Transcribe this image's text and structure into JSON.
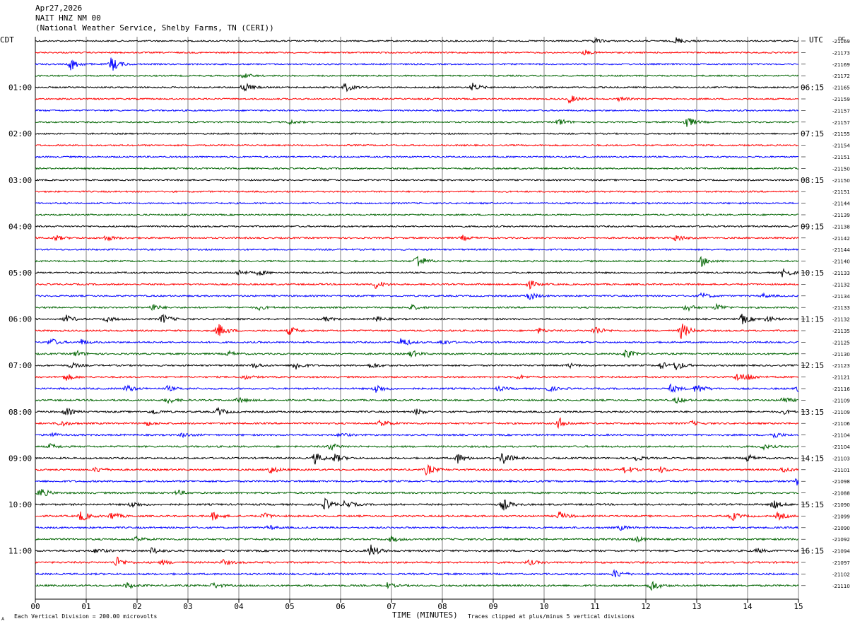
{
  "header": {
    "date": "Apr27,2026",
    "station": "NAIT HNZ NM 00",
    "location": "(National Weather Service, Shelby Farms, TN (CERI))",
    "left_tz": "CDT",
    "right_tz": "UTC",
    "dc_label": "DC"
  },
  "footer": {
    "scale_note": "Each Vertical Division =  200.00 microvolts",
    "clip_note": "Traces clipped at plus/minus 5 vertical divisions",
    "corner_mark": "A"
  },
  "colors": {
    "trace_cycle": [
      "#000000",
      "#ff0000",
      "#0000ff",
      "#006400"
    ],
    "grid": "#808080"
  },
  "chart_data": {
    "type": "line",
    "title": "NAIT HNZ NM 00",
    "xlabel": "TIME (MINUTES)",
    "x_ticks": [
      "00",
      "01",
      "02",
      "03",
      "04",
      "05",
      "06",
      "07",
      "08",
      "09",
      "10",
      "11",
      "12",
      "13",
      "14",
      "15"
    ],
    "xlim": [
      0,
      15
    ],
    "left_labels": [
      {
        "row": 4,
        "label": "01:00"
      },
      {
        "row": 8,
        "label": "02:00"
      },
      {
        "row": 12,
        "label": "03:00"
      },
      {
        "row": 16,
        "label": "04:00"
      },
      {
        "row": 20,
        "label": "05:00"
      },
      {
        "row": 24,
        "label": "06:00"
      },
      {
        "row": 28,
        "label": "07:00"
      },
      {
        "row": 32,
        "label": "08:00"
      },
      {
        "row": 36,
        "label": "09:00"
      },
      {
        "row": 40,
        "label": "10:00"
      },
      {
        "row": 44,
        "label": "11:00"
      }
    ],
    "right_labels": [
      {
        "row": 4,
        "label": "06:15"
      },
      {
        "row": 8,
        "label": "07:15"
      },
      {
        "row": 12,
        "label": "08:15"
      },
      {
        "row": 16,
        "label": "09:15"
      },
      {
        "row": 20,
        "label": "10:15"
      },
      {
        "row": 24,
        "label": "11:15"
      },
      {
        "row": 28,
        "label": "12:15"
      },
      {
        "row": 32,
        "label": "13:15"
      },
      {
        "row": 36,
        "label": "14:15"
      },
      {
        "row": 40,
        "label": "15:15"
      },
      {
        "row": 44,
        "label": "16:15"
      }
    ],
    "dc_offsets": [
      "-21169",
      "-21173",
      "-21169",
      "-21172",
      "-21165",
      "-21159",
      "-21157",
      "-21157",
      "-21155",
      "-21154",
      "-21151",
      "-21150",
      "-21150",
      "-21151",
      "-21144",
      "-21139",
      "-21138",
      "-21142",
      "-21144",
      "-21140",
      "-21133",
      "-21132",
      "-21134",
      "-21133",
      "-21132",
      "-21135",
      "-21125",
      "-21130",
      "-21123",
      "-21121",
      "-21116",
      "-21109",
      "-21109",
      "-21106",
      "-21104",
      "-21104",
      "-21103",
      "-21101",
      "-21098",
      "-21088",
      "-21090",
      "-21099",
      "-21090",
      "-21092",
      "-21094",
      "-21097",
      "-21102",
      "-21110"
    ],
    "events": [
      [
        [
          11.0,
          0.8
        ],
        [
          12.6,
          1.0
        ]
      ],
      [
        [
          10.8,
          0.7
        ]
      ],
      [
        [
          0.7,
          1.8
        ],
        [
          1.5,
          2.2
        ]
      ],
      [
        [
          4.1,
          0.7
        ]
      ],
      [
        [
          4.1,
          1.4
        ],
        [
          6.1,
          1.2
        ],
        [
          8.6,
          1.2
        ]
      ],
      [
        [
          10.5,
          1.2
        ],
        [
          11.5,
          0.6
        ]
      ],
      [],
      [
        [
          5.0,
          0.6
        ],
        [
          10.3,
          1.0
        ],
        [
          12.8,
          1.8
        ]
      ],
      [],
      [],
      [],
      [],
      [],
      [],
      [],
      [],
      [],
      [
        [
          0.4,
          0.8
        ],
        [
          1.4,
          0.8
        ],
        [
          8.4,
          0.7
        ],
        [
          12.6,
          1.0
        ]
      ],
      [],
      [
        [
          7.5,
          2.2
        ],
        [
          13.1,
          1.4
        ]
      ],
      [
        [
          4.0,
          0.8
        ],
        [
          4.4,
          0.7
        ],
        [
          14.7,
          1.4
        ]
      ],
      [
        [
          6.7,
          1.3
        ],
        [
          9.7,
          1.3
        ]
      ],
      [
        [
          9.7,
          1.3
        ],
        [
          13.1,
          0.9
        ],
        [
          14.3,
          0.6
        ]
      ],
      [
        [
          2.3,
          1.0
        ],
        [
          4.4,
          0.6
        ],
        [
          7.4,
          0.7
        ],
        [
          12.8,
          1.0
        ],
        [
          13.4,
          1.0
        ]
      ],
      [
        [
          0.6,
          1.1
        ],
        [
          1.4,
          0.8
        ],
        [
          2.5,
          1.4
        ],
        [
          5.7,
          0.6
        ],
        [
          6.7,
          0.7
        ],
        [
          13.9,
          1.5
        ],
        [
          14.4,
          0.8
        ]
      ],
      [
        [
          3.6,
          2.0
        ],
        [
          5.0,
          1.2
        ],
        [
          9.9,
          0.7
        ],
        [
          11.0,
          1.4
        ],
        [
          12.7,
          2.4
        ]
      ],
      [
        [
          0.3,
          1.2
        ],
        [
          0.9,
          0.8
        ],
        [
          7.2,
          1.4
        ],
        [
          8.0,
          0.8
        ]
      ],
      [
        [
          0.8,
          0.9
        ],
        [
          3.8,
          0.7
        ],
        [
          7.4,
          1.0
        ],
        [
          11.6,
          1.4
        ]
      ],
      [
        [
          0.7,
          0.8
        ],
        [
          4.3,
          0.7
        ],
        [
          5.1,
          1.4
        ],
        [
          6.6,
          0.8
        ],
        [
          10.5,
          0.6
        ],
        [
          12.3,
          1.0
        ],
        [
          12.6,
          1.4
        ]
      ],
      [
        [
          0.6,
          1.0
        ],
        [
          4.1,
          0.6
        ],
        [
          9.5,
          0.6
        ],
        [
          13.8,
          1.2
        ],
        [
          14.0,
          0.9
        ]
      ],
      [
        [
          1.8,
          1.0
        ],
        [
          2.6,
          0.7
        ],
        [
          6.7,
          1.3
        ],
        [
          9.1,
          0.6
        ],
        [
          10.1,
          0.7
        ],
        [
          12.5,
          1.2
        ],
        [
          13.0,
          1.5
        ],
        [
          15.0,
          0.9
        ]
      ],
      [
        [
          2.6,
          0.9
        ],
        [
          4.0,
          0.8
        ],
        [
          12.6,
          0.9
        ],
        [
          14.7,
          1.0
        ]
      ],
      [
        [
          0.6,
          1.1
        ],
        [
          2.3,
          0.8
        ],
        [
          3.6,
          1.1
        ],
        [
          7.5,
          0.8
        ],
        [
          14.7,
          0.6
        ]
      ],
      [
        [
          0.5,
          0.9
        ],
        [
          2.2,
          0.6
        ],
        [
          6.8,
          1.2
        ],
        [
          10.3,
          1.5
        ],
        [
          12.9,
          0.6
        ]
      ],
      [
        [
          0.3,
          0.7
        ],
        [
          2.9,
          0.6
        ],
        [
          6.0,
          0.6
        ],
        [
          14.5,
          1.0
        ]
      ],
      [
        [
          0.3,
          0.7
        ],
        [
          5.8,
          1.0
        ],
        [
          14.3,
          0.7
        ]
      ],
      [
        [
          5.5,
          1.6
        ],
        [
          5.9,
          1.2
        ],
        [
          8.3,
          1.4
        ],
        [
          9.2,
          2.0
        ],
        [
          11.8,
          0.7
        ],
        [
          14.0,
          1.0
        ]
      ],
      [
        [
          1.2,
          0.8
        ],
        [
          4.6,
          1.3
        ],
        [
          7.7,
          1.6
        ],
        [
          11.6,
          1.2
        ],
        [
          12.3,
          0.8
        ],
        [
          14.7,
          0.8
        ]
      ],
      [
        [
          15.0,
          1.6
        ]
      ],
      [
        [
          0.1,
          1.4
        ],
        [
          2.8,
          0.7
        ]
      ],
      [
        [
          1.9,
          0.9
        ],
        [
          5.7,
          1.6
        ],
        [
          6.1,
          1.1
        ],
        [
          9.2,
          1.7
        ],
        [
          14.5,
          1.3
        ]
      ],
      [
        [
          0.9,
          1.5
        ],
        [
          1.5,
          1.2
        ],
        [
          3.5,
          1.2
        ],
        [
          4.5,
          0.8
        ],
        [
          10.3,
          1.2
        ],
        [
          13.7,
          1.2
        ],
        [
          14.6,
          1.0
        ]
      ],
      [
        [
          4.6,
          0.6
        ],
        [
          11.5,
          0.6
        ]
      ],
      [
        [
          2.0,
          0.7
        ],
        [
          7.0,
          0.8
        ],
        [
          11.8,
          0.8
        ]
      ],
      [
        [
          1.2,
          0.8
        ],
        [
          2.3,
          0.9
        ],
        [
          6.6,
          1.8
        ],
        [
          14.2,
          0.6
        ]
      ],
      [
        [
          1.6,
          1.5
        ],
        [
          2.5,
          0.6
        ],
        [
          3.7,
          0.7
        ],
        [
          9.7,
          0.7
        ]
      ],
      [
        [
          11.4,
          1.2
        ]
      ],
      [
        [
          1.8,
          0.8
        ],
        [
          3.5,
          0.8
        ],
        [
          6.9,
          0.8
        ],
        [
          12.1,
          1.6
        ]
      ]
    ]
  }
}
